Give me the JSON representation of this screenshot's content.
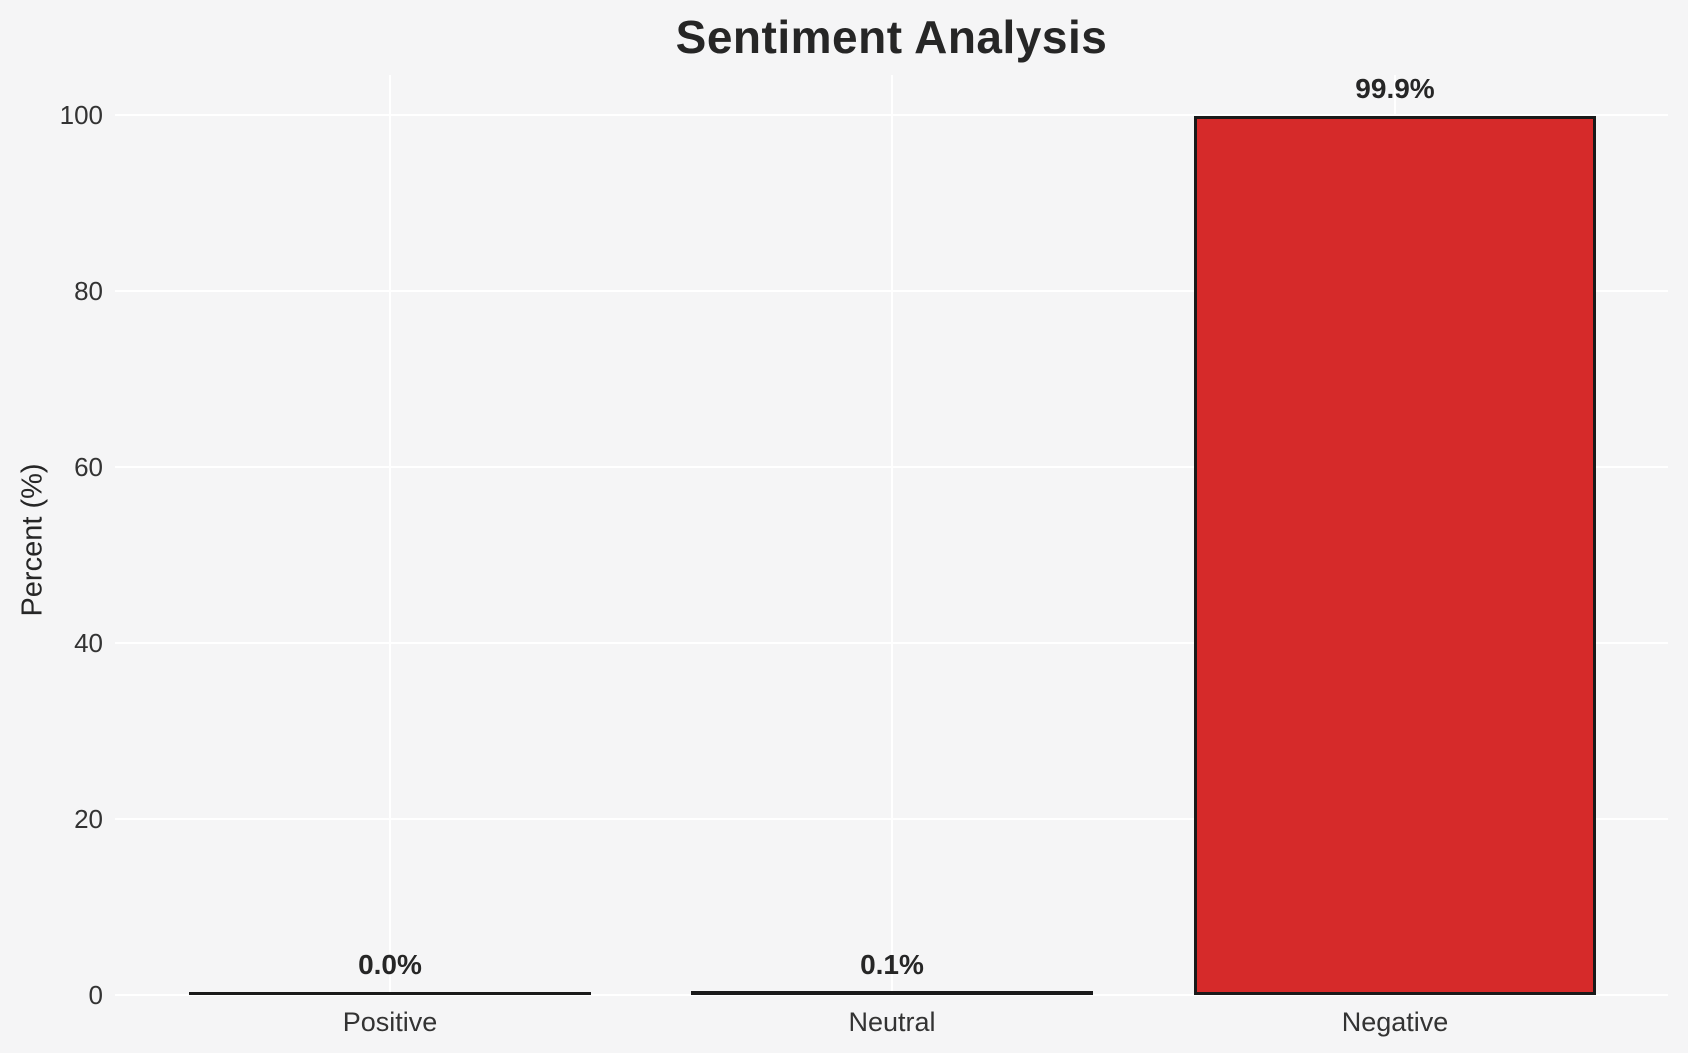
{
  "chart_data": {
    "type": "bar",
    "title": "Sentiment Analysis",
    "xlabel": "",
    "ylabel": "Percent (%)",
    "categories": [
      "Positive",
      "Neutral",
      "Negative"
    ],
    "values": [
      0.0,
      0.1,
      99.9
    ],
    "value_labels": [
      "0.0%",
      "0.1%",
      "99.9%"
    ],
    "yticks": [
      0,
      20,
      40,
      60,
      80,
      100
    ],
    "ylim": [
      0,
      104.5
    ],
    "grid": true,
    "grid_color": "#ffffff",
    "legend": false,
    "colors": {
      "bar_fill": "#d62a2a",
      "bar_edge": "#1a1a1a",
      "background": "#f5f5f6",
      "text": "#262626"
    }
  }
}
